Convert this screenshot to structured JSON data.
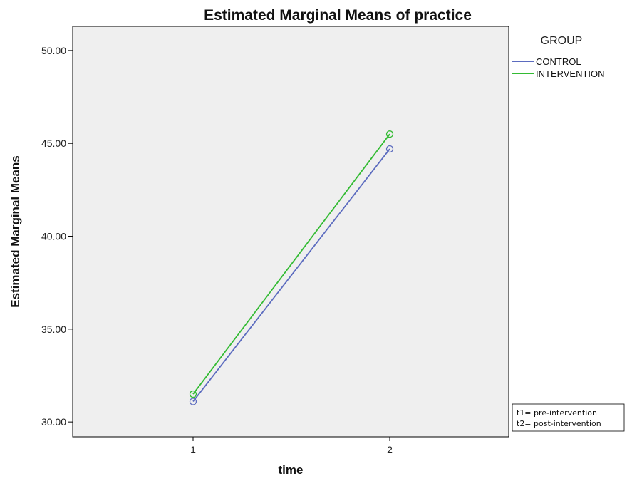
{
  "chart_data": {
    "type": "line",
    "title": "Estimated Marginal Means of practice",
    "xlabel": "time",
    "ylabel": "Estimated Marginal Means",
    "categories": [
      "1",
      "2"
    ],
    "ylim": [
      29.2,
      51.3
    ],
    "yticks": [
      "30.00",
      "35.00",
      "40.00",
      "45.00",
      "50.00"
    ],
    "grid": false,
    "legend_title": "GROUP",
    "legend_position": "right",
    "series": [
      {
        "name": "CONTROL",
        "values": [
          31.1,
          44.7
        ],
        "color": "#5b6bbf"
      },
      {
        "name": "INTERVENTION",
        "values": [
          31.5,
          45.5
        ],
        "color": "#33bb33"
      }
    ],
    "annotation": [
      "t1= pre-intervention",
      "t2= post-intervention"
    ],
    "plot_background": "#efefef"
  }
}
